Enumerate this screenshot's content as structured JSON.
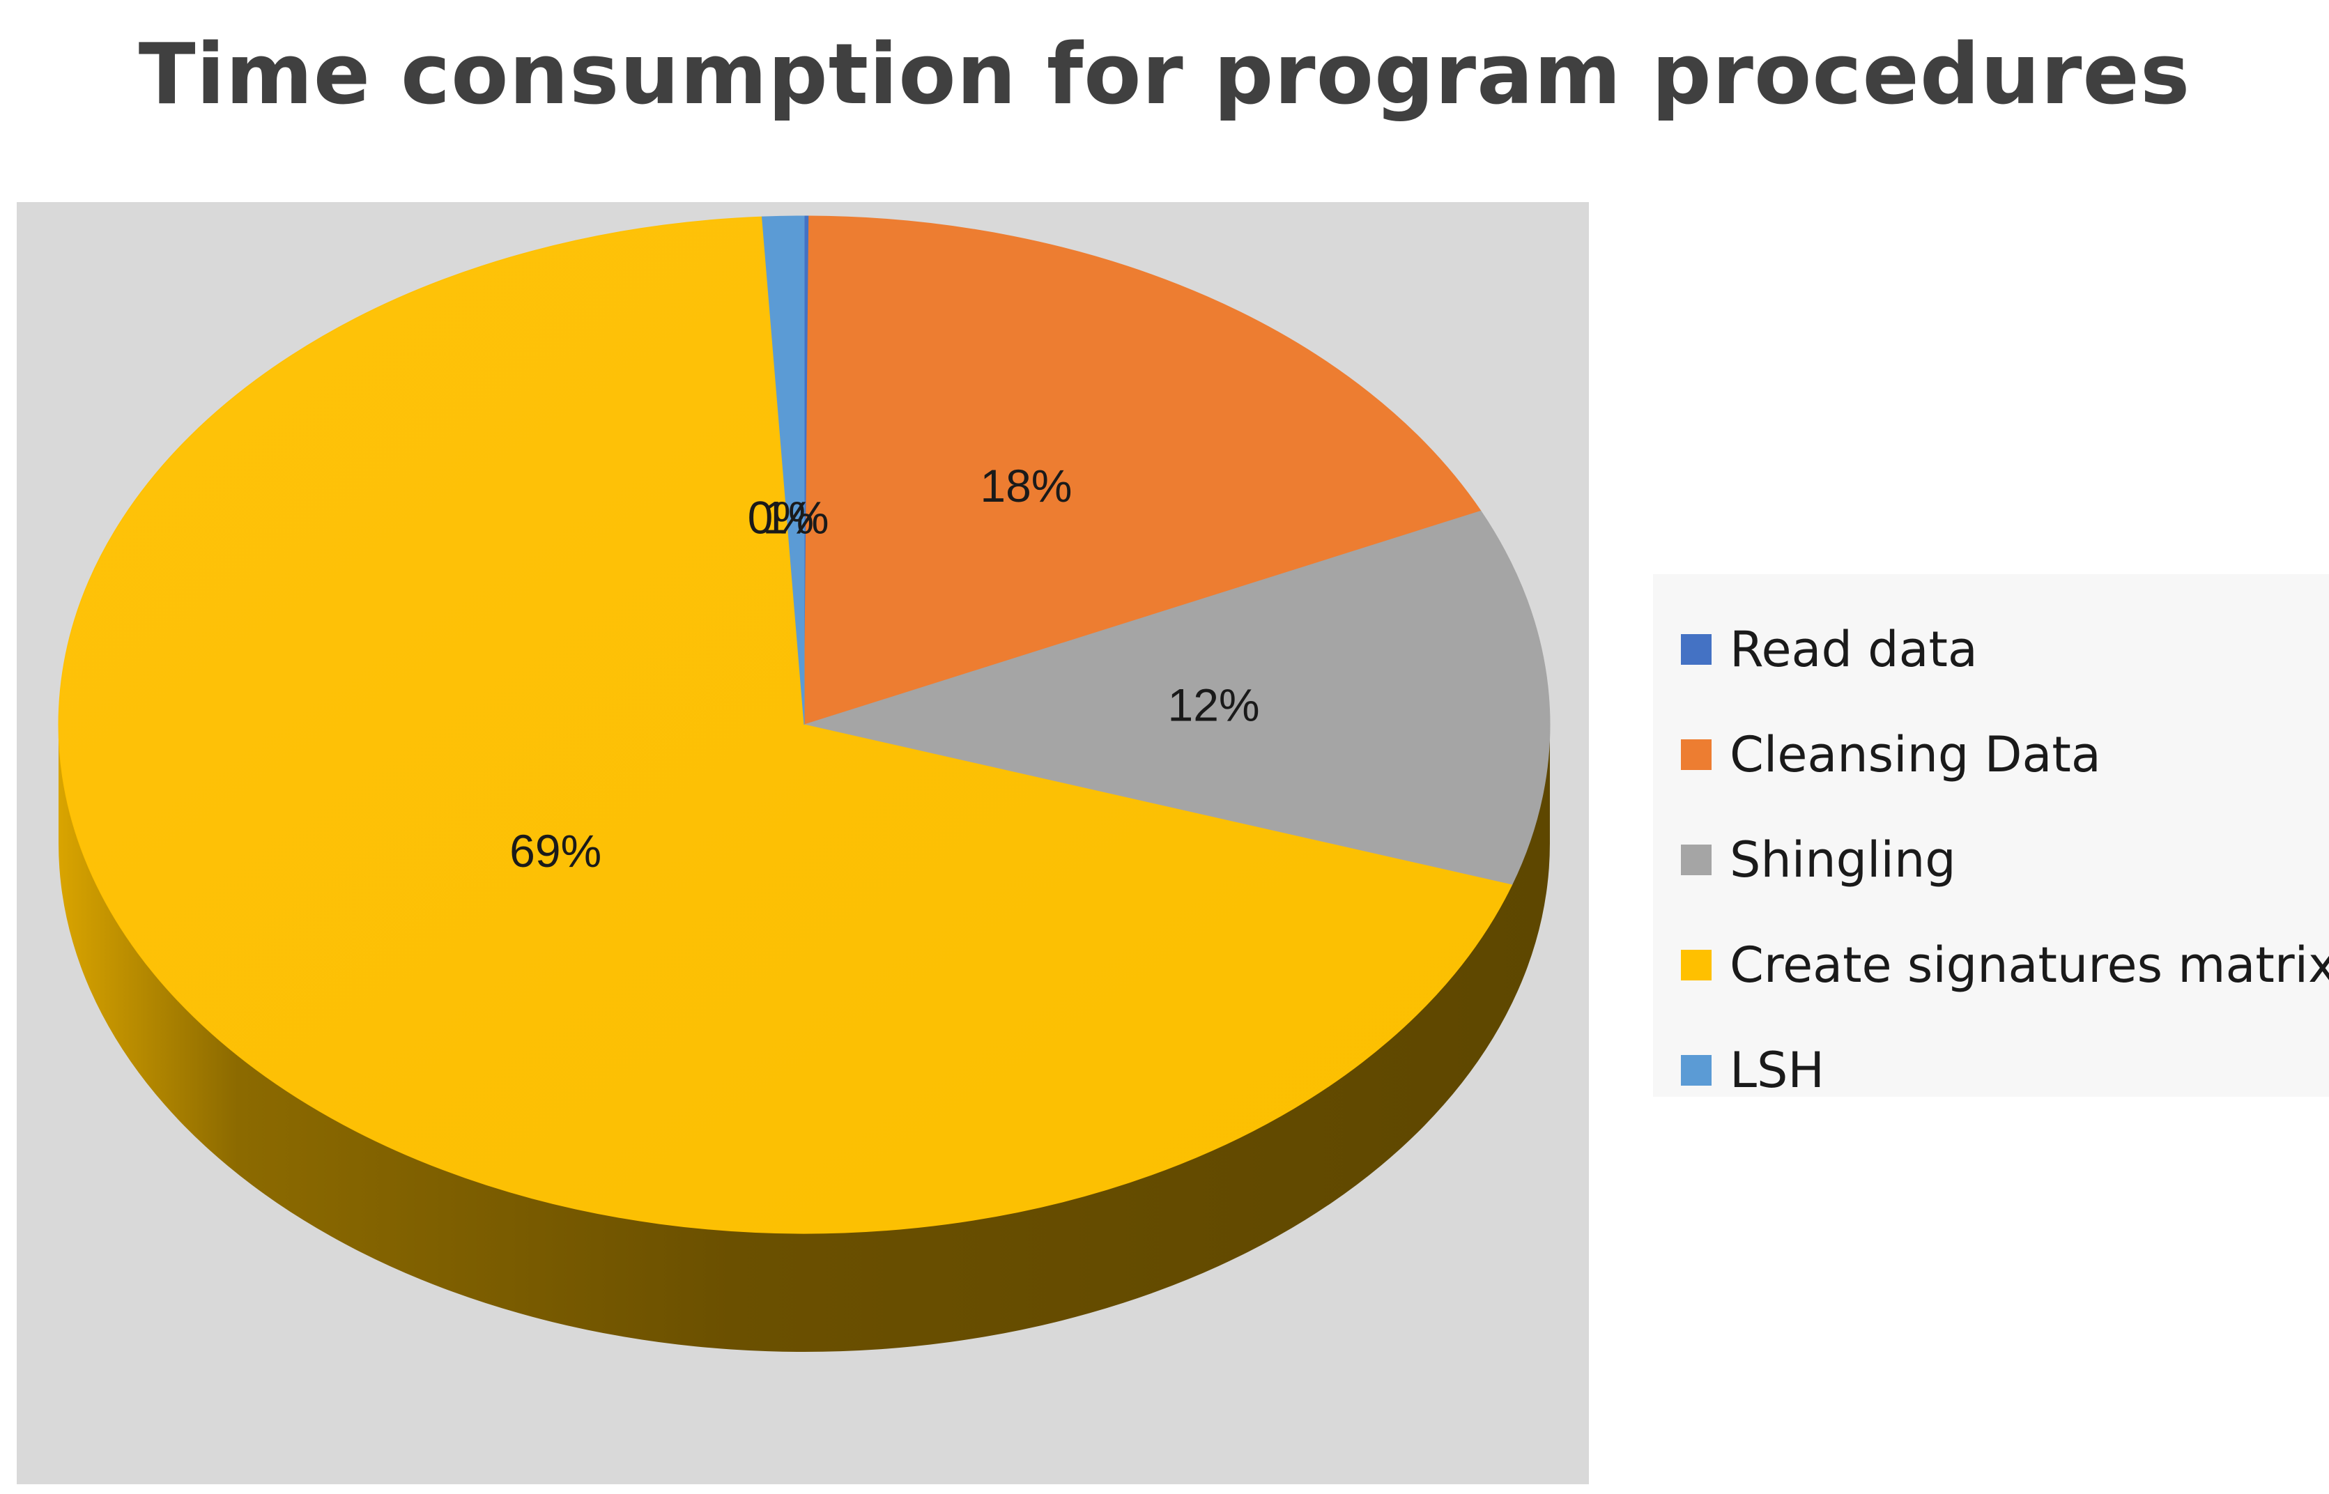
{
  "chart_data": {
    "type": "pie",
    "title": "Time consumption for program procedures",
    "categories": [
      "Read data",
      "Cleansing Data",
      "Shingling",
      "Create signatures matrix",
      "LSH"
    ],
    "values": [
      0.1,
      18,
      12,
      69,
      0.9
    ],
    "data_labels": [
      "0%",
      "18%",
      "12%",
      "69%",
      "1%"
    ],
    "colors": [
      "#4472c4",
      "#ed7d31",
      "#a5a5a5",
      "#ffc000",
      "#5b9bd5"
    ],
    "legend_position": "right",
    "style": "3d"
  }
}
